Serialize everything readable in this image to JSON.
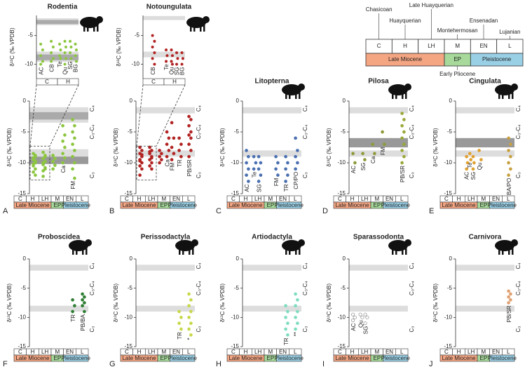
{
  "timeline": {
    "stages": [
      "C",
      "H",
      "LH",
      "M",
      "EN",
      "L"
    ],
    "epochs": [
      {
        "name": "Late Miocene",
        "span": 3,
        "color": "#f4a582"
      },
      {
        "name": "EP",
        "span": 1,
        "color": "#a6d99a"
      },
      {
        "name": "Pleistocene",
        "span": 2,
        "color": "#9ad0e6"
      }
    ],
    "stage_names": [
      "Chasicoan",
      "Huayquerian",
      "Late Huayquerian",
      "Montehermosan",
      "Ensenadan",
      "Lujanian"
    ],
    "ep_full": "Early Pliocene"
  },
  "zones": [
    {
      "label": "C₄",
      "color": "#c8d400"
    },
    {
      "label": "C₃-C₄",
      "color": "#3a9a3a"
    },
    {
      "label": "C₃",
      "color": "#333333"
    }
  ],
  "chart_data": [
    {
      "type": "strip",
      "letter": "A",
      "title": "Rodentia",
      "ylabel": "δ¹³C (‰ VPDB)",
      "ylim": [
        -15,
        0
      ],
      "yticks": [
        -15,
        -10,
        -5,
        0
      ],
      "bands": [
        {
          "from": -3.5,
          "to": -1,
          "color": "#dddddd"
        },
        {
          "from": -3,
          "to": -1.8,
          "color": "#aaaaaa"
        },
        {
          "from": -9.6,
          "to": -7.8,
          "color": "#dddddd"
        },
        {
          "from": -10.2,
          "to": -9,
          "color": "#999999"
        }
      ],
      "groups": [
        {
          "name": null,
          "stage": 0,
          "color": "#8cc63f",
          "label_color": "#8cc63f",
          "values": [
            -8.5,
            -9,
            -9.5,
            -10,
            -10.5,
            -11,
            -9.2,
            -8.8,
            -10.2,
            -9.7,
            -11.5,
            -12
          ]
        },
        {
          "name": null,
          "stage": 1,
          "color": "#8cc63f",
          "label_color": "#8cc63f",
          "values": [
            -8.3,
            -8.8,
            -9.3,
            -9.8,
            -10.3,
            -10.8,
            -11.3,
            -9,
            -10,
            -11,
            -12.2
          ]
        },
        {
          "name": null,
          "stage": 2,
          "color": "#8cc63f",
          "label_color": "#8cc63f",
          "values": [
            -8.8,
            -9.3,
            -9.8,
            -10.4,
            -11
          ]
        },
        {
          "name": "Ca",
          "stage": 3,
          "color": "#8cc63f",
          "label_color": "#e8642c",
          "values": [
            -4,
            -5.5,
            -6.5,
            -7.5,
            -8.5,
            -9.2,
            -10
          ]
        },
        {
          "name": "FM",
          "stage": 4,
          "color": "#8cc63f",
          "label_color": "#2e9a48",
          "values": [
            -3,
            -4,
            -5,
            -6,
            -7,
            -8,
            -9,
            -10,
            -11,
            -12.5
          ]
        }
      ],
      "inset": {
        "ylim": [
          -12.5,
          -1.5
        ],
        "yticks": [
          -10,
          -5
        ],
        "bands": [
          {
            "from": -3.2,
            "to": -2,
            "color": "#dddddd"
          },
          {
            "from": -3,
            "to": -2.3,
            "color": "#aaaaaa"
          },
          {
            "from": -9.6,
            "to": -7.8,
            "color": "#dddddd"
          },
          {
            "from": -9.3,
            "to": -8.3,
            "color": "#aaaaaa"
          }
        ],
        "groups": [
          {
            "name": "AC",
            "stage": 0,
            "color": "#8cc63f",
            "label_color": "#9b1f5f",
            "values": [
              -6.5,
              -7.5,
              -8.5,
              -9.5,
              -10
            ]
          },
          {
            "name": "CB",
            "stage": 0,
            "color": "#8cc63f",
            "label_color": "#b2182b",
            "values": [
              -6,
              -7,
              -8,
              -9,
              -9.5
            ]
          },
          {
            "name": "Te",
            "stage": 1,
            "color": "#8cc63f",
            "label_color": "#d6604d",
            "values": [
              -6.5,
              -7.5,
              -8.5,
              -9
            ]
          },
          {
            "name": "Qu",
            "stage": 1,
            "color": "#8cc63f",
            "label_color": "#e08030",
            "values": [
              -6,
              -7,
              -8,
              -9,
              -10
            ]
          },
          {
            "name": "SG",
            "stage": 1,
            "color": "#8cc63f",
            "label_color": "#e58a3a",
            "values": [
              -6,
              -7,
              -8,
              -9
            ]
          },
          {
            "name": "BG",
            "stage": 1,
            "color": "#8cc63f",
            "label_color": "#c0504d",
            "values": [
              -6.5,
              -7.5,
              -8.5,
              -9.5
            ]
          }
        ]
      }
    },
    {
      "type": "strip",
      "letter": "B",
      "title": "Notoungulata",
      "ylabel": "δ¹³C (‰ VPDB)",
      "ylim": [
        -15,
        0
      ],
      "yticks": [
        -15,
        -10,
        -5,
        0
      ],
      "bands": [
        {
          "from": -2,
          "to": -1,
          "color": "#dddddd"
        },
        {
          "from": -9,
          "to": -8,
          "color": "#dddddd"
        }
      ],
      "groups": [
        {
          "name": null,
          "stage": 0,
          "color": "#b22222",
          "label_color": "#b22222",
          "values": [
            -7.5,
            -8,
            -8.5,
            -9,
            -9.5,
            -10,
            -10.5,
            -11,
            -12,
            -8.7,
            -9.7
          ]
        },
        {
          "name": null,
          "stage": 1,
          "color": "#b22222",
          "label_color": "#b22222",
          "values": [
            -7.5,
            -8,
            -8.5,
            -9,
            -9.5,
            -10,
            -10.5,
            -11,
            -8.2,
            -9.2
          ]
        },
        {
          "name": null,
          "stage": 2,
          "color": "#b22222",
          "label_color": "#b22222",
          "values": [
            -8,
            -8.5,
            -9,
            -9.5,
            -10
          ]
        },
        {
          "name": "Ca",
          "stage": 3,
          "color": "#b22222",
          "label_color": "#e8642c",
          "values": [
            -5,
            -6,
            -7,
            -8,
            -9
          ]
        },
        {
          "name": "FM",
          "stage": 3,
          "color": "#b22222",
          "label_color": "#2e9a48",
          "values": [
            -3.5,
            -6,
            -7.5,
            -8.5,
            -9.5
          ]
        },
        {
          "name": "TR",
          "stage": 4,
          "color": "#b22222",
          "label_color": "#2ab0c0",
          "values": [
            -6,
            -7,
            -8,
            -9
          ]
        },
        {
          "name": "PB/SR",
          "stage": 5,
          "color": "#b22222",
          "label_color": "#2b2f8f",
          "values": [
            -2.5,
            -3,
            -4,
            -5,
            -5.5,
            -6,
            -7,
            -8,
            -9
          ]
        }
      ],
      "inset": {
        "ylim": [
          -12.5,
          -1.5
        ],
        "yticks": [
          -10,
          -5
        ],
        "bands": [
          {
            "from": -2.3,
            "to": -1.6,
            "color": "#dddddd"
          },
          {
            "from": -8.8,
            "to": -7.8,
            "color": "#dddddd"
          }
        ],
        "groups": [
          {
            "name": "CB",
            "stage": 0,
            "color": "#b22222",
            "label_color": "#9b1f5f",
            "values": [
              -5,
              -6,
              -7,
              -8,
              -9,
              -10
            ]
          },
          {
            "name": "Te",
            "stage": 1,
            "color": "#b22222",
            "label_color": "#d6604d",
            "values": [
              -7.5,
              -8.5,
              -9.5
            ]
          },
          {
            "name": "Qu",
            "stage": 1,
            "color": "#b22222",
            "label_color": "#e08030",
            "values": [
              -7.5,
              -8.5,
              -9.5,
              -10
            ]
          },
          {
            "name": "SG",
            "stage": 1,
            "color": "#b22222",
            "label_color": "#e58a3a",
            "values": [
              -8,
              -9,
              -10
            ]
          },
          {
            "name": "BG",
            "stage": 1,
            "color": "#b22222",
            "label_color": "#c0504d",
            "values": [
              -8,
              -9,
              -10
            ]
          }
        ]
      }
    },
    {
      "type": "strip",
      "letter": "C",
      "title": "Litopterna",
      "ylabel": "δ¹³C (‰ VPDB)",
      "ylim": [
        -15,
        0
      ],
      "yticks": [
        -15,
        -10,
        -5,
        0
      ],
      "bands": [
        {
          "from": -2,
          "to": -1,
          "color": "#dddddd"
        },
        {
          "from": -9,
          "to": -8,
          "color": "#dddddd"
        }
      ],
      "groups": [
        {
          "name": "AC",
          "stage": 0,
          "color": "#4a6fb0",
          "label_color": "#9b1f5f",
          "values": [
            -8,
            -9,
            -10,
            -11,
            -12,
            -13
          ]
        },
        {
          "name": "Te",
          "stage": 1,
          "color": "#4a6fb0",
          "label_color": "#e8642c",
          "values": [
            -9,
            -10,
            -11
          ]
        },
        {
          "name": "SG",
          "stage": 1,
          "color": "#4a6fb0",
          "label_color": "#e58a3a",
          "values": [
            -9,
            -10,
            -11,
            -12,
            -13
          ]
        },
        {
          "name": "FM",
          "stage": 3,
          "color": "#4a6fb0",
          "label_color": "#2e9a48",
          "values": [
            -9,
            -10,
            -11,
            -12
          ]
        },
        {
          "name": "TR",
          "stage": 4,
          "color": "#4a6fb0",
          "label_color": "#2ab0c0",
          "values": [
            -9,
            -10,
            -11,
            -12,
            -13
          ]
        },
        {
          "name": "CP/PO",
          "stage": 5,
          "color": "#4a6fb0",
          "label_color": "#2b2f8f",
          "values": [
            -6,
            -8,
            -9,
            -10,
            -11
          ]
        }
      ]
    },
    {
      "type": "strip",
      "letter": "D",
      "title": "Pilosa",
      "ylabel": "δ¹³C (‰ VPDB)",
      "ylim": [
        -15,
        0
      ],
      "yticks": [
        -15,
        -10,
        -5,
        0
      ],
      "bands": [
        {
          "from": -2,
          "to": -1,
          "color": "#dddddd"
        },
        {
          "from": -7.5,
          "to": -6,
          "color": "#999999"
        },
        {
          "from": -9,
          "to": -8,
          "color": "#dddddd"
        }
      ],
      "groups": [
        {
          "name": "AC",
          "stage": 0,
          "color": "#8f9a3a",
          "label_color": "#9b1f5f",
          "values": [
            -8.5,
            -10
          ]
        },
        {
          "name": "SG",
          "stage": 1,
          "color": "#8f9a3a",
          "label_color": "#e58a3a",
          "values": [
            -8.5,
            -9.5
          ]
        },
        {
          "name": "Ca",
          "stage": 2,
          "color": "#8f9a3a",
          "label_color": "#e8642c",
          "values": [
            -7,
            -8.5
          ]
        },
        {
          "name": "FM",
          "stage": 3,
          "color": "#8f9a3a",
          "label_color": "#2e9a48",
          "values": [
            -5,
            -7
          ]
        },
        {
          "name": "PB/SR",
          "stage": 5,
          "color": "#9aa838",
          "label_color": "#2b2f8f",
          "values": [
            -2,
            -3,
            -4,
            -5,
            -6,
            -7,
            -8,
            -9,
            -10
          ]
        }
      ]
    },
    {
      "type": "strip",
      "letter": "E",
      "title": "Cingulata",
      "ylabel": "δ¹³C (‰ VPDB)",
      "ylim": [
        -15,
        0
      ],
      "yticks": [
        -15,
        -10,
        -5,
        0
      ],
      "bands": [
        {
          "from": -2,
          "to": -1,
          "color": "#dddddd"
        },
        {
          "from": -7.5,
          "to": -6,
          "color": "#999999"
        },
        {
          "from": -9,
          "to": -8,
          "color": "#dddddd"
        }
      ],
      "groups": [
        {
          "name": "AC",
          "stage": 1,
          "color": "#e0a030",
          "label_color": "#9b1f5f",
          "values": [
            -9,
            -10,
            -11
          ]
        },
        {
          "name": "Te",
          "stage": 1,
          "color": "#e0a030",
          "label_color": "#e8642c",
          "values": [
            -8.5,
            -9.5
          ]
        },
        {
          "name": "SG",
          "stage": 1,
          "color": "#e0a030",
          "label_color": "#e58a3a",
          "values": [
            -9,
            -10,
            -11
          ]
        },
        {
          "name": "Qu",
          "stage": 2,
          "color": "#e0a030",
          "label_color": "#e08030",
          "values": [
            -8,
            -9.5
          ]
        },
        {
          "name": "BA/PO",
          "stage": 5,
          "color": "#c8a040",
          "label_color": "#2b2f8f",
          "values": [
            -6,
            -7,
            -8,
            -9,
            -10,
            -11,
            -12
          ]
        }
      ]
    },
    {
      "type": "strip",
      "letter": "F",
      "title": "Proboscidea",
      "ylabel": "δ¹³C (‰ VPDB)",
      "ylim": [
        -15,
        0
      ],
      "yticks": [
        -15,
        -10,
        -5,
        0
      ],
      "bands": [
        {
          "from": -2,
          "to": -1,
          "color": "#dddddd"
        },
        {
          "from": -9,
          "to": -8,
          "color": "#dddddd"
        }
      ],
      "groups": [
        {
          "name": "TR",
          "stage": 4,
          "color": "#2e7d32",
          "label_color": "#2b2f8f",
          "values": [
            -7,
            -8,
            -9
          ]
        },
        {
          "name": "PB/BA",
          "stage": 5,
          "color": "#2e7d32",
          "label_color": "#2b2f8f",
          "values": [
            -6,
            -6.5,
            -7,
            -7.5,
            -8,
            -9
          ]
        }
      ]
    },
    {
      "type": "strip",
      "letter": "G",
      "title": "Perissodactyla",
      "ylabel": "δ¹³C (‰ VPDB)",
      "ylim": [
        -15,
        0
      ],
      "yticks": [
        -15,
        -10,
        -5,
        0
      ],
      "bands": [
        {
          "from": -2,
          "to": -1,
          "color": "#dddddd"
        },
        {
          "from": -9,
          "to": -8,
          "color": "#dddddd"
        }
      ],
      "groups": [
        {
          "name": "TR",
          "stage": 4,
          "color": "#c8d84a",
          "label_color": "#2ab0c0",
          "values": [
            -9,
            -10,
            -11,
            -12
          ]
        },
        {
          "name": "*",
          "stage": 5,
          "color": "#c8d84a",
          "label_color": "#2b2f8f",
          "values": [
            -6,
            -7,
            -8,
            -9,
            -10,
            -11,
            -12,
            -13
          ]
        }
      ]
    },
    {
      "type": "strip",
      "letter": "H",
      "title": "Artiodactyla",
      "ylabel": "δ¹³C (‰ VPDB)",
      "ylim": [
        -15,
        0
      ],
      "yticks": [
        -15,
        -10,
        -5,
        0
      ],
      "bands": [
        {
          "from": -2,
          "to": -1,
          "color": "#dddddd"
        },
        {
          "from": -9,
          "to": -8,
          "color": "#dddddd"
        }
      ],
      "groups": [
        {
          "name": "TR",
          "stage": 4,
          "color": "#7fdcc0",
          "label_color": "#2ab0c0",
          "values": [
            -8,
            -9,
            -10,
            -11,
            -12,
            -13
          ]
        },
        {
          "name": "**",
          "stage": 5,
          "color": "#7fdcc0",
          "label_color": "#2b2f8f",
          "values": [
            -6,
            -7,
            -8,
            -9,
            -10,
            -11,
            -12
          ]
        }
      ]
    },
    {
      "type": "strip",
      "letter": "I",
      "title": "Sparassodonta",
      "ylabel": "δ¹³C (‰ VPDB)",
      "ylim": [
        -15,
        0
      ],
      "yticks": [
        -15,
        -10,
        -5,
        0
      ],
      "bands": [
        {
          "from": -2,
          "to": -1,
          "color": "#dddddd"
        },
        {
          "from": -9,
          "to": -8,
          "color": "#dddddd"
        }
      ],
      "groups": [
        {
          "name": "AC",
          "stage": 0,
          "color": "#999999",
          "open": true,
          "label_color": "#9b1f5f",
          "values": [
            -9.5,
            -10,
            -10.5
          ]
        },
        {
          "name": "Qu",
          "stage": 1,
          "color": "#999999",
          "open": true,
          "label_color": "#e08030",
          "values": [
            -9.5,
            -10
          ]
        },
        {
          "name": "SG",
          "stage": 1,
          "color": "#999999",
          "open": true,
          "label_color": "#e58a3a",
          "values": [
            -9.5,
            -10,
            -11
          ]
        }
      ]
    },
    {
      "type": "strip",
      "letter": "J",
      "title": "Carnivora",
      "ylabel": "δ¹³C (‰ VPDB)",
      "ylim": [
        -15,
        0
      ],
      "yticks": [
        -15,
        -10,
        -5,
        0
      ],
      "bands": [
        {
          "from": -2,
          "to": -1,
          "color": "#dddddd"
        },
        {
          "from": -9,
          "to": -8,
          "color": "#dddddd"
        }
      ],
      "groups": [
        {
          "name": "PB/SR",
          "stage": 5,
          "color": "#e0a070",
          "label_color": "#2b2f8f",
          "values": [
            -5.5,
            -6,
            -6.5,
            -7,
            -7.5
          ]
        }
      ]
    }
  ]
}
